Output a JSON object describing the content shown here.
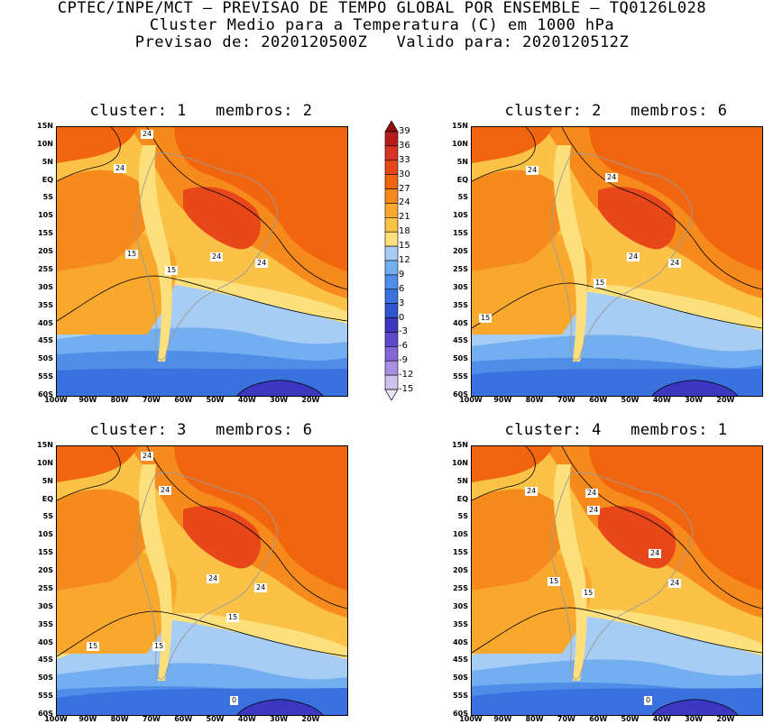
{
  "header": {
    "line1": "CPTEC/INPE/MCT – PREVISAO DE TEMPO GLOBAL POR ENSEMBLE – TQ0126L028",
    "line2": "Cluster Medio para a Temperatura (C) em 1000 hPa",
    "line3": "Previsao de: 2020120500Z   Valido para: 2020120512Z"
  },
  "lat_labels": [
    "15N",
    "10N",
    "5N",
    "EQ",
    "5S",
    "10S",
    "15S",
    "20S",
    "25S",
    "30S",
    "35S",
    "40S",
    "45S",
    "50S",
    "55S",
    "60S"
  ],
  "lon_labels": [
    "100W",
    "90W",
    "80W",
    "70W",
    "60W",
    "50W",
    "40W",
    "30W",
    "20W"
  ],
  "colorbar": {
    "labels": [
      "39",
      "36",
      "33",
      "30",
      "27",
      "24",
      "21",
      "18",
      "15",
      "12",
      "9",
      "6",
      "3",
      "0",
      "-3",
      "-6",
      "-9",
      "-12",
      "-15"
    ],
    "colors": [
      "#8e0d0d",
      "#b81d1d",
      "#d73327",
      "#e8471a",
      "#f2650f",
      "#f68a1c",
      "#f9a82e",
      "#fbc248",
      "#fde07c",
      "#a8cdf5",
      "#72aef0",
      "#4e8ee8",
      "#3971df",
      "#2f55d3",
      "#3c37c0",
      "#5e48cc",
      "#8266d6",
      "#a891e2",
      "#cdc2ee",
      "#e7e2f7"
    ]
  },
  "panels": [
    {
      "title": "cluster: 1   membros: 2",
      "contour_labels": [
        "24",
        "24",
        "24",
        "24",
        "15",
        "15"
      ]
    },
    {
      "title": "cluster: 2   membros: 6",
      "contour_labels": [
        "24",
        "24",
        "24",
        "24",
        "15",
        "15"
      ]
    },
    {
      "title": "cluster: 3   membros: 6",
      "contour_labels": [
        "24",
        "24",
        "24",
        "24",
        "15",
        "15",
        "15",
        "0"
      ]
    },
    {
      "title": "cluster: 4   membros: 1",
      "contour_labels": [
        "24",
        "24",
        "24",
        "24",
        "24",
        "15",
        "15",
        "0"
      ]
    }
  ]
}
